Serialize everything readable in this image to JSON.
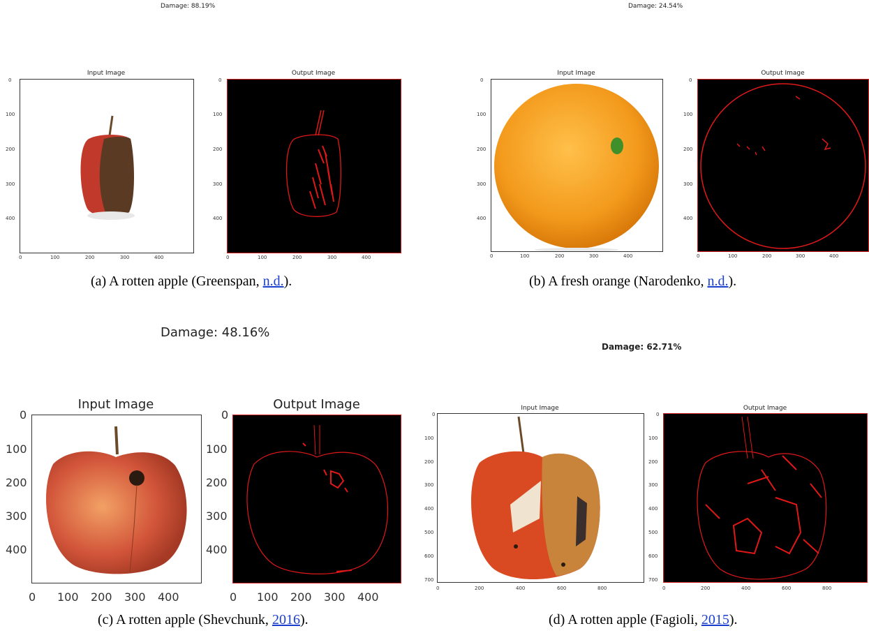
{
  "figures": [
    {
      "id": "a",
      "damage_label": "Damage: 88.19%",
      "input_title": "Input Image",
      "output_title": "Output Image",
      "y_ticks": [
        "0",
        "100",
        "200",
        "300",
        "400"
      ],
      "x_ticks": [
        "0",
        "100",
        "200",
        "300",
        "400"
      ],
      "caption_text": "(a) A rotten apple (Greenspan, ",
      "caption_link": "n.d.",
      "caption_end": ")."
    },
    {
      "id": "b",
      "damage_label": "Damage: 24.54%",
      "input_title": "Input Image",
      "output_title": "Output Image",
      "y_ticks": [
        "0",
        "100",
        "200",
        "300",
        "400"
      ],
      "x_ticks": [
        "0",
        "100",
        "200",
        "300",
        "400"
      ],
      "caption_text": "(b) A fresh orange (Narodenko, ",
      "caption_link": "n.d.",
      "caption_end": ")."
    },
    {
      "id": "c",
      "damage_label": "Damage: 48.16%",
      "input_title": "Input Image",
      "output_title": "Output Image",
      "y_ticks": [
        "0",
        "100",
        "200",
        "300",
        "400"
      ],
      "x_ticks": [
        "0",
        "100",
        "200",
        "300",
        "400"
      ],
      "caption_text": "(c) A rotten apple (Shevchunk, ",
      "caption_link": "2016",
      "caption_end": ")."
    },
    {
      "id": "d",
      "damage_label": "Damage: 62.71%",
      "input_title": "Input Image",
      "output_title": "Output Image",
      "y_ticks": [
        "0",
        "100",
        "200",
        "300",
        "400",
        "500",
        "600",
        "700"
      ],
      "x_ticks": [
        "0",
        "200",
        "400",
        "600",
        "800"
      ],
      "caption_text": "(d) A rotten apple (Fagioli, ",
      "caption_link": "2015",
      "caption_end": ")."
    }
  ],
  "colors": {
    "edge_red": "#e01818",
    "apple_red": "#c8402a",
    "rot_brown": "#5a3a22",
    "orange": "#f39a1c",
    "stem": "#6b4a2a"
  }
}
